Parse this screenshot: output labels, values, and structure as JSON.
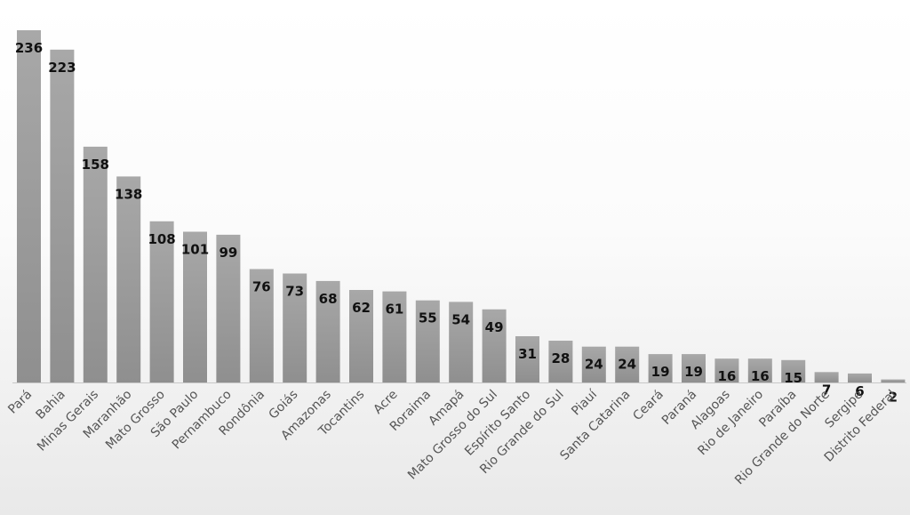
{
  "chart_data": {
    "type": "bar",
    "title": "",
    "xlabel": "",
    "ylabel": "",
    "ylim": [
      0,
      240
    ],
    "grid": false,
    "legend": "none",
    "bar_color": "#9c9c9c",
    "categories": [
      "Pará",
      "Bahia",
      "Minas Gerais",
      "Maranhão",
      "Mato Grosso",
      "São Paulo",
      "Pernambuco",
      "Rondônia",
      "Goiás",
      "Amazonas",
      "Tocantins",
      "Acre",
      "Roraima",
      "Amapá",
      "Mato Grosso do Sul",
      "Espírito Santo",
      "Rio Grande do Sul",
      "Piauí",
      "Santa Catarina",
      "Ceará",
      "Paraná",
      "Alagoas",
      "Rio de Janeiro",
      "Paraíba",
      "Rio Grande do Norte",
      "Sergipe",
      "Distrito Federal"
    ],
    "values": [
      236,
      223,
      158,
      138,
      108,
      101,
      99,
      76,
      73,
      68,
      62,
      61,
      55,
      54,
      49,
      31,
      28,
      24,
      24,
      19,
      19,
      16,
      16,
      15,
      7,
      6,
      2
    ]
  }
}
